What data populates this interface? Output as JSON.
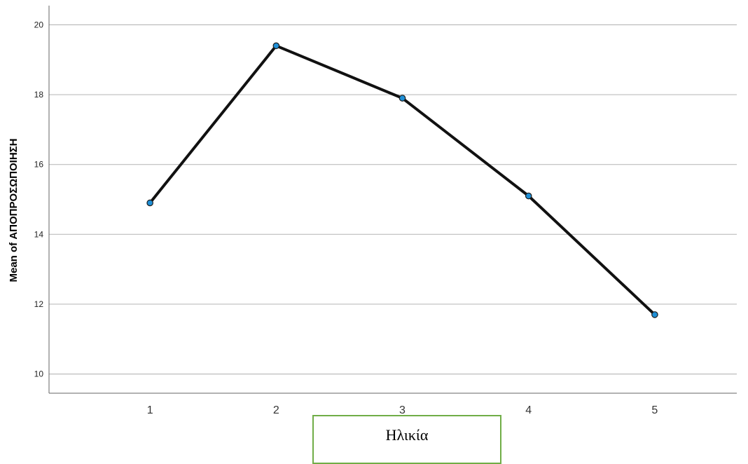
{
  "chart_data": {
    "type": "line",
    "x": [
      1,
      2,
      3,
      4,
      5
    ],
    "series": [
      {
        "values": [
          14.9,
          19.4,
          17.9,
          15.1,
          11.7
        ]
      }
    ],
    "xlabel": "Ηλικία",
    "ylabel": "Mean of ΑΠΟΠΡΟΣΩΠΟΙΗΣΗ",
    "xlim": [
      0.2,
      5.65
    ],
    "ylim": [
      9.45,
      20.55
    ],
    "yticks": [
      10,
      12,
      14,
      16,
      18,
      20
    ],
    "xticks": [
      1,
      2,
      3,
      4,
      5
    ],
    "grid": "horizontal",
    "colors": {
      "line": "#111111",
      "marker": "#1f8fd6",
      "grid": "#bdbdbd",
      "axis": "#666666",
      "xlabel_border": "#70ad47"
    }
  }
}
